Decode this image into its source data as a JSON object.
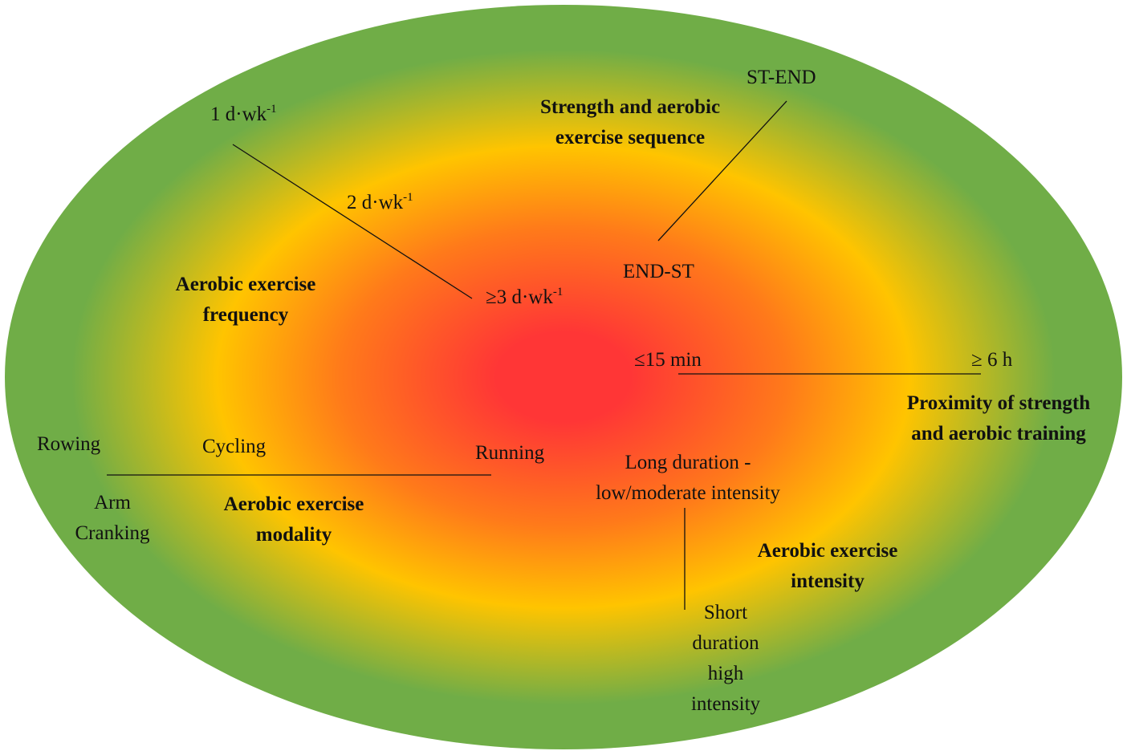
{
  "colors": {
    "center": "#ff3636",
    "mid_orange": "#ff7a1a",
    "ring_yellow": "#ffc400",
    "outer_green": "#70ad47",
    "line": "#111111"
  },
  "factors": {
    "frequency": {
      "title_line1": "Aerobic exercise",
      "title_line2": "frequency",
      "low": {
        "base": "1 d·wk",
        "sup": "-1"
      },
      "mid": {
        "base": "2 d·wk",
        "sup": "-1"
      },
      "high": {
        "base": "≥3 d·wk",
        "sup": "-1"
      }
    },
    "sequence": {
      "title_line1": "Strength and aerobic",
      "title_line2": "exercise sequence",
      "low": "ST-END",
      "high": "END-ST"
    },
    "proximity": {
      "title_line1": "Proximity of strength",
      "title_line2": "and aerobic training",
      "high": "≤15 min",
      "low": "≥ 6 h"
    },
    "modality": {
      "title_line1": "Aerobic exercise",
      "title_line2": "modality",
      "rowing": "Rowing",
      "cycling": "Cycling",
      "running": "Running",
      "arm_line1": "Arm",
      "arm_line2": "Cranking"
    },
    "intensity": {
      "title_line1": "Aerobic exercise",
      "title_line2": "intensity",
      "high_line1": "Long duration -",
      "high_line2": "low/moderate intensity",
      "low_line1": "Short",
      "low_line2": "duration",
      "low_line3": "high",
      "low_line4": "intensity"
    }
  }
}
